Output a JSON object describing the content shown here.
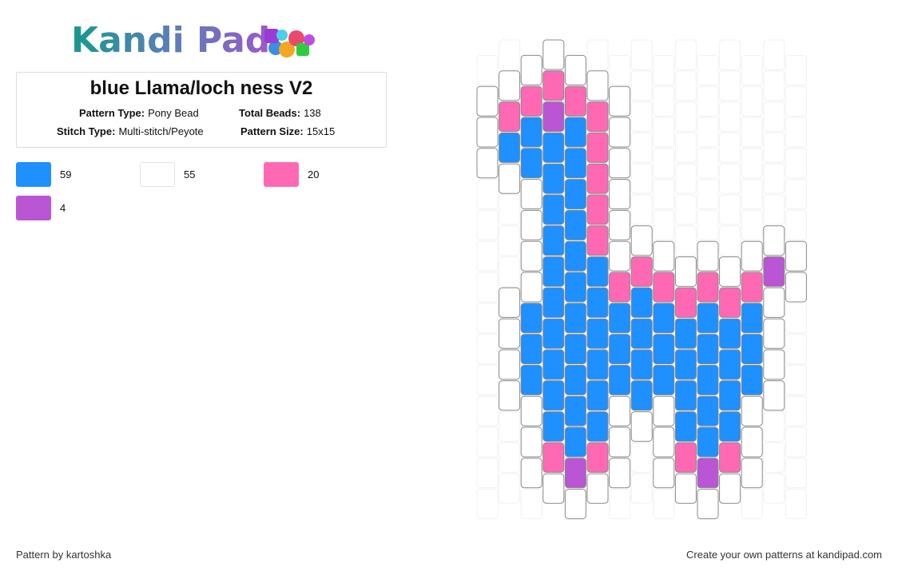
{
  "header": {
    "logo": "Kandi Pad",
    "title": "blue Llama/loch ness V2",
    "details": [
      {
        "label": "Pattern Type:",
        "value": "Pony Bead"
      },
      {
        "label": "Total Beads:",
        "value": 138
      },
      {
        "label": "Stitch Type:",
        "value": "Multi-stitch/Peyote"
      },
      {
        "label": "Pattern Size:",
        "value": "15x15"
      }
    ]
  },
  "legend": [
    {
      "color": "#1e90ff",
      "count": 59
    },
    {
      "color": "#ffffff",
      "count": 55
    },
    {
      "color": "#ff69b4",
      "count": 20
    },
    {
      "color": "#ba55d3",
      "count": 4
    }
  ],
  "grid": {
    "columns": [
      [
        null,
        1,
        1,
        1,
        null,
        null,
        null,
        null,
        null,
        null,
        null,
        null,
        null,
        null,
        null
      ],
      [
        null,
        1,
        2,
        0,
        1,
        null,
        null,
        null,
        1,
        1,
        1,
        1,
        null,
        null,
        null
      ],
      [
        1,
        2,
        0,
        0,
        1,
        1,
        1,
        1,
        0,
        0,
        0,
        1,
        1,
        1,
        null
      ],
      [
        1,
        2,
        3,
        0,
        0,
        0,
        0,
        0,
        0,
        0,
        0,
        0,
        0,
        2,
        1
      ],
      [
        1,
        2,
        0,
        0,
        0,
        0,
        0,
        0,
        0,
        0,
        0,
        0,
        0,
        3,
        1
      ],
      [
        null,
        1,
        2,
        2,
        2,
        2,
        2,
        0,
        0,
        0,
        0,
        0,
        0,
        2,
        1
      ],
      [
        null,
        1,
        1,
        1,
        1,
        1,
        1,
        2,
        0,
        0,
        0,
        1,
        1,
        1,
        null
      ],
      [
        null,
        null,
        null,
        null,
        null,
        null,
        1,
        2,
        0,
        0,
        0,
        0,
        1,
        null,
        null
      ],
      [
        null,
        null,
        null,
        null,
        null,
        null,
        1,
        2,
        0,
        0,
        0,
        1,
        1,
        1,
        null
      ],
      [
        null,
        null,
        null,
        null,
        null,
        null,
        null,
        1,
        2,
        0,
        0,
        0,
        0,
        2,
        1
      ],
      [
        null,
        null,
        null,
        null,
        null,
        null,
        1,
        2,
        0,
        0,
        0,
        0,
        0,
        3,
        1
      ],
      [
        null,
        null,
        null,
        null,
        null,
        null,
        null,
        1,
        2,
        0,
        0,
        0,
        0,
        2,
        1
      ],
      [
        null,
        null,
        null,
        null,
        null,
        null,
        1,
        2,
        0,
        0,
        0,
        1,
        1,
        1,
        null
      ],
      [
        null,
        null,
        null,
        null,
        null,
        null,
        1,
        3,
        1,
        1,
        1,
        1,
        null,
        null,
        null
      ],
      [
        null,
        null,
        null,
        null,
        null,
        null,
        1,
        1,
        null,
        null,
        null,
        null,
        null,
        null,
        null
      ]
    ]
  },
  "footer": {
    "left": "Pattern by kartoshka",
    "right": "Create your own patterns at kandipad.com"
  }
}
